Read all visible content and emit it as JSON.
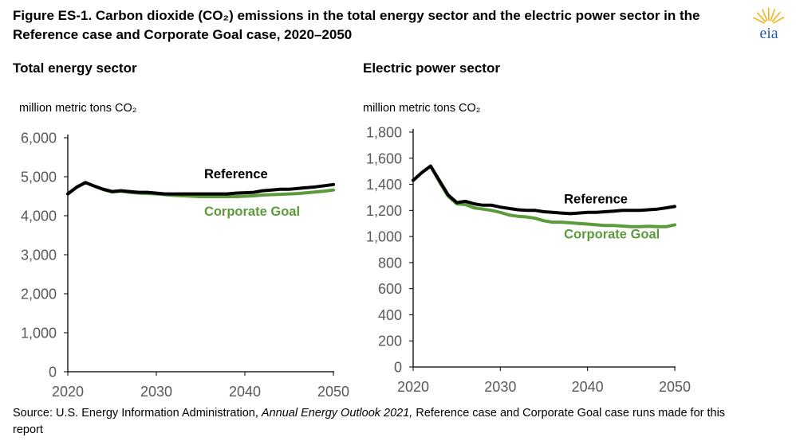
{
  "figure": {
    "title": "Figure ES-1. Carbon dioxide (CO₂) emissions in the total energy sector and the electric power sector in the Reference case and Corporate Goal case, 2020–2050",
    "logo_text": "eia",
    "source_prefix": "Source: U.S. Energy Information Administration, ",
    "source_italic": "Annual Energy Outlook 2021,",
    "source_suffix": " Reference case and Corporate Goal case runs made for this report"
  },
  "colors": {
    "reference": "#000000",
    "corporate_goal": "#5b9b3a",
    "axis": "#000000",
    "tick_text": "#595959",
    "logo_arc": "#f4b21b",
    "logo_text": "#2a5da8"
  },
  "chart_data": [
    {
      "type": "line",
      "title": "Total energy sector",
      "ylabel": "million metric tons CO₂",
      "xlim": [
        2020,
        2050
      ],
      "ylim": [
        0,
        6000
      ],
      "yticks": [
        0,
        1000,
        2000,
        3000,
        4000,
        5000,
        6000
      ],
      "ytick_labels": [
        "0",
        "1,000",
        "2,000",
        "3,000",
        "4,000",
        "5,000",
        "6,000"
      ],
      "xticks": [
        2020,
        2030,
        2040,
        2050
      ],
      "xtick_labels": [
        "2020",
        "2030",
        "2040",
        "2050"
      ],
      "grid": false,
      "legend": "inline-labels",
      "series": [
        {
          "name": "Reference",
          "x": [
            2020,
            2021,
            2022,
            2023,
            2024,
            2025,
            2026,
            2027,
            2028,
            2029,
            2030,
            2031,
            2032,
            2033,
            2034,
            2035,
            2036,
            2037,
            2038,
            2039,
            2040,
            2041,
            2042,
            2043,
            2044,
            2045,
            2046,
            2047,
            2048,
            2049,
            2050
          ],
          "values": [
            4560,
            4730,
            4850,
            4760,
            4680,
            4620,
            4640,
            4620,
            4600,
            4600,
            4580,
            4560,
            4560,
            4560,
            4560,
            4560,
            4560,
            4560,
            4560,
            4580,
            4590,
            4600,
            4640,
            4660,
            4680,
            4680,
            4700,
            4720,
            4740,
            4770,
            4800
          ]
        },
        {
          "name": "Corporate Goal",
          "x": [
            2020,
            2021,
            2022,
            2023,
            2024,
            2025,
            2026,
            2027,
            2028,
            2029,
            2030,
            2031,
            2032,
            2033,
            2034,
            2035,
            2036,
            2037,
            2038,
            2039,
            2040,
            2041,
            2042,
            2043,
            2044,
            2045,
            2046,
            2047,
            2048,
            2049,
            2050
          ],
          "values": [
            4560,
            4730,
            4850,
            4760,
            4670,
            4610,
            4630,
            4600,
            4580,
            4570,
            4560,
            4540,
            4520,
            4510,
            4500,
            4490,
            4490,
            4490,
            4490,
            4490,
            4500,
            4510,
            4530,
            4540,
            4550,
            4560,
            4570,
            4590,
            4610,
            4630,
            4660
          ]
        }
      ]
    },
    {
      "type": "line",
      "title": "Electric power sector",
      "ylabel": "million metric tons CO₂",
      "xlim": [
        2020,
        2050
      ],
      "ylim": [
        0,
        1800
      ],
      "yticks": [
        0,
        200,
        400,
        600,
        800,
        1000,
        1200,
        1400,
        1600,
        1800
      ],
      "ytick_labels": [
        "0",
        "200",
        "400",
        "600",
        "800",
        "1,000",
        "1,200",
        "1,400",
        "1,600",
        "1,800"
      ],
      "xticks": [
        2020,
        2030,
        2040,
        2050
      ],
      "xtick_labels": [
        "2020",
        "2030",
        "2040",
        "2050"
      ],
      "grid": false,
      "legend": "inline-labels",
      "series": [
        {
          "name": "Reference",
          "x": [
            2020,
            2021,
            2022,
            2023,
            2024,
            2025,
            2026,
            2027,
            2028,
            2029,
            2030,
            2031,
            2032,
            2033,
            2034,
            2035,
            2036,
            2037,
            2038,
            2039,
            2040,
            2041,
            2042,
            2043,
            2044,
            2045,
            2046,
            2047,
            2048,
            2049,
            2050
          ],
          "values": [
            1430,
            1490,
            1540,
            1430,
            1320,
            1260,
            1270,
            1250,
            1240,
            1240,
            1225,
            1215,
            1205,
            1200,
            1200,
            1190,
            1185,
            1180,
            1175,
            1180,
            1185,
            1185,
            1190,
            1195,
            1200,
            1200,
            1200,
            1205,
            1210,
            1220,
            1230
          ]
        },
        {
          "name": "Corporate Goal",
          "x": [
            2020,
            2021,
            2022,
            2023,
            2024,
            2025,
            2026,
            2027,
            2028,
            2029,
            2030,
            2031,
            2032,
            2033,
            2034,
            2035,
            2036,
            2037,
            2038,
            2039,
            2040,
            2041,
            2042,
            2043,
            2044,
            2045,
            2046,
            2047,
            2048,
            2049,
            2050
          ],
          "values": [
            1430,
            1490,
            1540,
            1420,
            1310,
            1250,
            1245,
            1220,
            1210,
            1200,
            1185,
            1165,
            1155,
            1150,
            1140,
            1120,
            1110,
            1110,
            1105,
            1100,
            1095,
            1090,
            1085,
            1085,
            1080,
            1075,
            1075,
            1078,
            1075,
            1075,
            1090
          ]
        }
      ]
    }
  ]
}
